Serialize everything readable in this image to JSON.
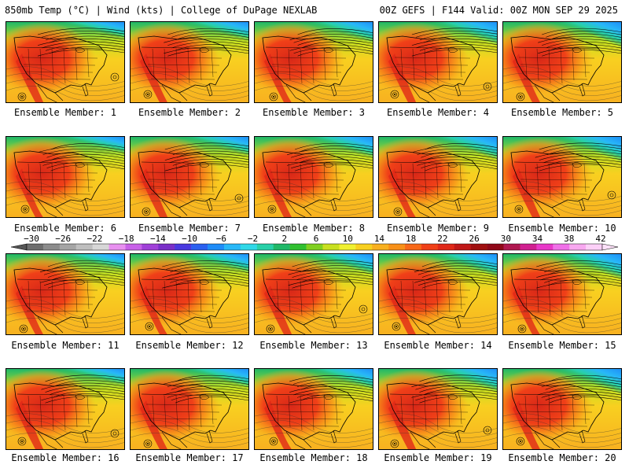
{
  "header": {
    "title_left": "850mb Temp (°C) | Wind (kts) | College of DuPage NEXLAB",
    "title_right": "00Z GEFS | F144 Valid: 00Z MON SEP 29 2025"
  },
  "members": [
    {
      "label": "Ensemble Member: 1"
    },
    {
      "label": "Ensemble Member: 2"
    },
    {
      "label": "Ensemble Member: 3"
    },
    {
      "label": "Ensemble Member: 4"
    },
    {
      "label": "Ensemble Member: 5"
    },
    {
      "label": "Ensemble Member: 6"
    },
    {
      "label": "Ensemble Member: 7"
    },
    {
      "label": "Ensemble Member: 8"
    },
    {
      "label": "Ensemble Member: 9"
    },
    {
      "label": "Ensemble Member: 10"
    },
    {
      "label": "Ensemble Member: 11"
    },
    {
      "label": "Ensemble Member: 12"
    },
    {
      "label": "Ensemble Member: 13"
    },
    {
      "label": "Ensemble Member: 14"
    },
    {
      "label": "Ensemble Member: 15"
    },
    {
      "label": "Ensemble Member: 16"
    },
    {
      "label": "Ensemble Member: 17"
    },
    {
      "label": "Ensemble Member: 18"
    },
    {
      "label": "Ensemble Member: 19"
    },
    {
      "label": "Ensemble Member: 20"
    }
  ],
  "colorbar": {
    "labels": [
      "−30",
      "−26",
      "−22",
      "−18",
      "−14",
      "−10",
      "−6",
      "−2",
      "2",
      "6",
      "10",
      "14",
      "18",
      "22",
      "26",
      "30",
      "34",
      "38",
      "42"
    ],
    "colors": [
      "#6e6e6e",
      "#8c8c8c",
      "#a5a5a5",
      "#bebebe",
      "#d7d7d7",
      "#e890f0",
      "#c860e8",
      "#a040d8",
      "#7a30c8",
      "#4a3ae0",
      "#2a60f0",
      "#1e8cf8",
      "#28b8f8",
      "#30d8e8",
      "#28d0a8",
      "#20b868",
      "#30c030",
      "#80d020",
      "#c8e020",
      "#f0f030",
      "#f8d020",
      "#f8b020",
      "#f89018",
      "#f86818",
      "#f04018",
      "#e02818",
      "#c01818",
      "#a01010",
      "#900818",
      "#b01850",
      "#d02090",
      "#e838c8",
      "#f070e8",
      "#f8a8f0",
      "#fcd0f8"
    ]
  }
}
